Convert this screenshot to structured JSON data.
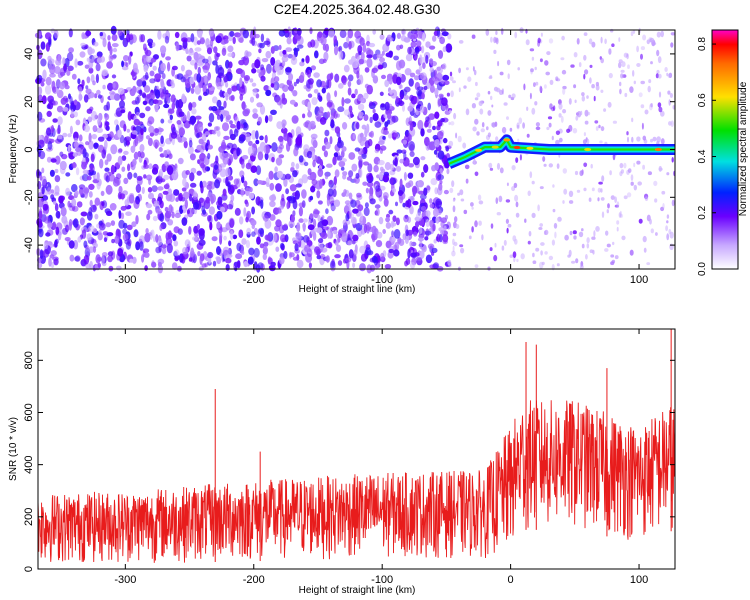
{
  "title": "C2E4.2025.364.02.48.G30",
  "colors": {
    "snr_trace": "#e81c1c",
    "axis": "#000000"
  },
  "chart_data": [
    {
      "type": "heatmap",
      "xlabel": "Height of straight line (km)",
      "ylabel": "Frequency (Hz)",
      "xlim": [
        -368,
        128
      ],
      "ylim": [
        -50,
        50
      ],
      "x_ticks": [
        -300,
        -200,
        -100,
        0,
        100
      ],
      "y_ticks": [
        -40,
        -20,
        0,
        20,
        40
      ],
      "colorbar": {
        "label": "Normalized spectral amplitude",
        "range": [
          0,
          0.85
        ],
        "ticks": [
          0.0,
          0.2,
          0.4,
          0.6,
          0.8
        ]
      },
      "noise_region": {
        "x_range": [
          -368,
          -48
        ],
        "level": 0.12
      },
      "signal": {
        "x_range": [
          -48,
          128
        ],
        "frequency_trace": [
          {
            "x": -48,
            "y": -6
          },
          {
            "x": -35,
            "y": -3
          },
          {
            "x": -20,
            "y": 1
          },
          {
            "x": -8,
            "y": 1
          },
          {
            "x": -3,
            "y": 4
          },
          {
            "x": 0,
            "y": 1
          },
          {
            "x": 30,
            "y": 0
          },
          {
            "x": 80,
            "y": 0
          },
          {
            "x": 128,
            "y": 0
          }
        ],
        "peak_amplitude": 0.85
      }
    },
    {
      "type": "line",
      "xlabel": "Height of straight line (km)",
      "ylabel": "SNR (10 * v/v)",
      "xlim": [
        -368,
        128
      ],
      "ylim": [
        0,
        920
      ],
      "x_ticks": [
        -300,
        -200,
        -100,
        0,
        100
      ],
      "y_ticks": [
        0,
        200,
        400,
        600,
        800
      ],
      "envelope": [
        {
          "x": -368,
          "low": 20,
          "high": 290
        },
        {
          "x": -300,
          "low": 20,
          "high": 300
        },
        {
          "x": -200,
          "low": 30,
          "high": 340
        },
        {
          "x": -100,
          "low": 40,
          "high": 370
        },
        {
          "x": -20,
          "low": 40,
          "high": 380
        },
        {
          "x": 0,
          "low": 60,
          "high": 550
        },
        {
          "x": 10,
          "low": 150,
          "high": 650
        },
        {
          "x": 50,
          "low": 150,
          "high": 650
        },
        {
          "x": 100,
          "low": 100,
          "high": 550
        },
        {
          "x": 128,
          "low": 150,
          "high": 650
        }
      ],
      "spikes": [
        {
          "x": -368,
          "y": 420
        },
        {
          "x": -230,
          "y": 690
        },
        {
          "x": -195,
          "y": 450
        },
        {
          "x": 12,
          "y": 870
        },
        {
          "x": 20,
          "y": 860
        },
        {
          "x": 75,
          "y": 770
        },
        {
          "x": 125,
          "y": 920
        }
      ]
    }
  ]
}
